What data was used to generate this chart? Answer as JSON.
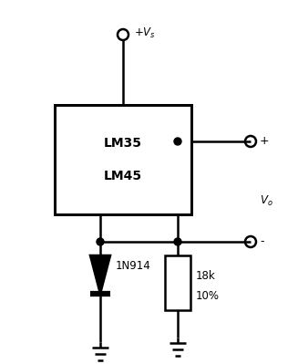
{
  "bg_color": "#ffffff",
  "line_color": "#000000",
  "line_width": 1.8,
  "ic_label1": "LM35",
  "ic_label2": "LM45",
  "vcc_label": "$+V_s$",
  "vo_label": "$V_o$",
  "diode_label": "1N914",
  "resistor_label1": "18k",
  "resistor_label2": "10%",
  "plus_label": "+",
  "minus_label": "-",
  "font_size_ic": 10,
  "font_size_labels": 8.5,
  "font_size_terminal": 9
}
